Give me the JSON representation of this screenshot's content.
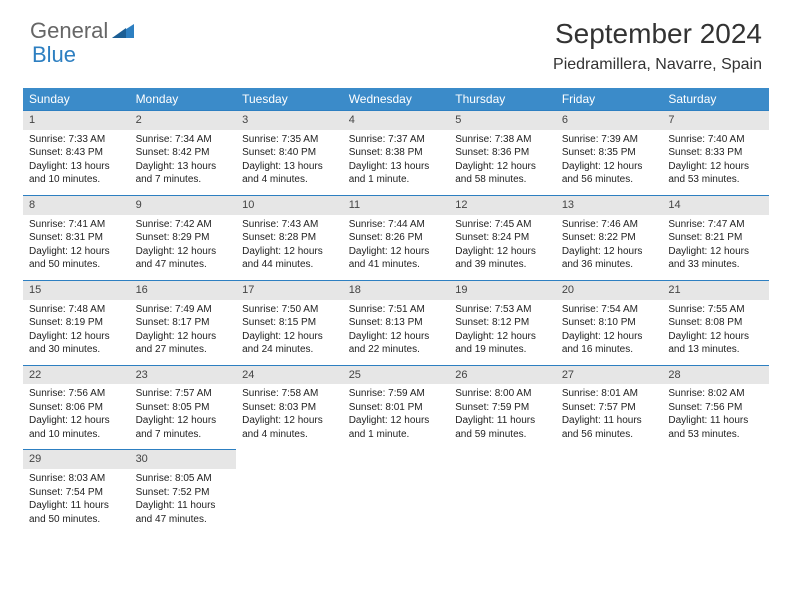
{
  "logo": {
    "text1": "General",
    "text2": "Blue"
  },
  "title": "September 2024",
  "location": "Piedramillera, Navarre, Spain",
  "colors": {
    "header_bg": "#3b8bc9",
    "header_text": "#ffffff",
    "daynum_bg": "#e6e6e6",
    "border_top": "#2d7fc1",
    "text": "#222222",
    "logo_gray": "#666666",
    "logo_blue": "#2d7fc1",
    "page_bg": "#ffffff"
  },
  "typography": {
    "title_fontsize": 28,
    "location_fontsize": 16,
    "weekday_fontsize": 12,
    "cell_fontsize": 10,
    "font_family": "Arial"
  },
  "weekday_labels": [
    "Sunday",
    "Monday",
    "Tuesday",
    "Wednesday",
    "Thursday",
    "Friday",
    "Saturday"
  ],
  "weeks": [
    [
      {
        "n": "1",
        "sunrise": "Sunrise: 7:33 AM",
        "sunset": "Sunset: 8:43 PM",
        "daylight": "Daylight: 13 hours and 10 minutes."
      },
      {
        "n": "2",
        "sunrise": "Sunrise: 7:34 AM",
        "sunset": "Sunset: 8:42 PM",
        "daylight": "Daylight: 13 hours and 7 minutes."
      },
      {
        "n": "3",
        "sunrise": "Sunrise: 7:35 AM",
        "sunset": "Sunset: 8:40 PM",
        "daylight": "Daylight: 13 hours and 4 minutes."
      },
      {
        "n": "4",
        "sunrise": "Sunrise: 7:37 AM",
        "sunset": "Sunset: 8:38 PM",
        "daylight": "Daylight: 13 hours and 1 minute."
      },
      {
        "n": "5",
        "sunrise": "Sunrise: 7:38 AM",
        "sunset": "Sunset: 8:36 PM",
        "daylight": "Daylight: 12 hours and 58 minutes."
      },
      {
        "n": "6",
        "sunrise": "Sunrise: 7:39 AM",
        "sunset": "Sunset: 8:35 PM",
        "daylight": "Daylight: 12 hours and 56 minutes."
      },
      {
        "n": "7",
        "sunrise": "Sunrise: 7:40 AM",
        "sunset": "Sunset: 8:33 PM",
        "daylight": "Daylight: 12 hours and 53 minutes."
      }
    ],
    [
      {
        "n": "8",
        "sunrise": "Sunrise: 7:41 AM",
        "sunset": "Sunset: 8:31 PM",
        "daylight": "Daylight: 12 hours and 50 minutes."
      },
      {
        "n": "9",
        "sunrise": "Sunrise: 7:42 AM",
        "sunset": "Sunset: 8:29 PM",
        "daylight": "Daylight: 12 hours and 47 minutes."
      },
      {
        "n": "10",
        "sunrise": "Sunrise: 7:43 AM",
        "sunset": "Sunset: 8:28 PM",
        "daylight": "Daylight: 12 hours and 44 minutes."
      },
      {
        "n": "11",
        "sunrise": "Sunrise: 7:44 AM",
        "sunset": "Sunset: 8:26 PM",
        "daylight": "Daylight: 12 hours and 41 minutes."
      },
      {
        "n": "12",
        "sunrise": "Sunrise: 7:45 AM",
        "sunset": "Sunset: 8:24 PM",
        "daylight": "Daylight: 12 hours and 39 minutes."
      },
      {
        "n": "13",
        "sunrise": "Sunrise: 7:46 AM",
        "sunset": "Sunset: 8:22 PM",
        "daylight": "Daylight: 12 hours and 36 minutes."
      },
      {
        "n": "14",
        "sunrise": "Sunrise: 7:47 AM",
        "sunset": "Sunset: 8:21 PM",
        "daylight": "Daylight: 12 hours and 33 minutes."
      }
    ],
    [
      {
        "n": "15",
        "sunrise": "Sunrise: 7:48 AM",
        "sunset": "Sunset: 8:19 PM",
        "daylight": "Daylight: 12 hours and 30 minutes."
      },
      {
        "n": "16",
        "sunrise": "Sunrise: 7:49 AM",
        "sunset": "Sunset: 8:17 PM",
        "daylight": "Daylight: 12 hours and 27 minutes."
      },
      {
        "n": "17",
        "sunrise": "Sunrise: 7:50 AM",
        "sunset": "Sunset: 8:15 PM",
        "daylight": "Daylight: 12 hours and 24 minutes."
      },
      {
        "n": "18",
        "sunrise": "Sunrise: 7:51 AM",
        "sunset": "Sunset: 8:13 PM",
        "daylight": "Daylight: 12 hours and 22 minutes."
      },
      {
        "n": "19",
        "sunrise": "Sunrise: 7:53 AM",
        "sunset": "Sunset: 8:12 PM",
        "daylight": "Daylight: 12 hours and 19 minutes."
      },
      {
        "n": "20",
        "sunrise": "Sunrise: 7:54 AM",
        "sunset": "Sunset: 8:10 PM",
        "daylight": "Daylight: 12 hours and 16 minutes."
      },
      {
        "n": "21",
        "sunrise": "Sunrise: 7:55 AM",
        "sunset": "Sunset: 8:08 PM",
        "daylight": "Daylight: 12 hours and 13 minutes."
      }
    ],
    [
      {
        "n": "22",
        "sunrise": "Sunrise: 7:56 AM",
        "sunset": "Sunset: 8:06 PM",
        "daylight": "Daylight: 12 hours and 10 minutes."
      },
      {
        "n": "23",
        "sunrise": "Sunrise: 7:57 AM",
        "sunset": "Sunset: 8:05 PM",
        "daylight": "Daylight: 12 hours and 7 minutes."
      },
      {
        "n": "24",
        "sunrise": "Sunrise: 7:58 AM",
        "sunset": "Sunset: 8:03 PM",
        "daylight": "Daylight: 12 hours and 4 minutes."
      },
      {
        "n": "25",
        "sunrise": "Sunrise: 7:59 AM",
        "sunset": "Sunset: 8:01 PM",
        "daylight": "Daylight: 12 hours and 1 minute."
      },
      {
        "n": "26",
        "sunrise": "Sunrise: 8:00 AM",
        "sunset": "Sunset: 7:59 PM",
        "daylight": "Daylight: 11 hours and 59 minutes."
      },
      {
        "n": "27",
        "sunrise": "Sunrise: 8:01 AM",
        "sunset": "Sunset: 7:57 PM",
        "daylight": "Daylight: 11 hours and 56 minutes."
      },
      {
        "n": "28",
        "sunrise": "Sunrise: 8:02 AM",
        "sunset": "Sunset: 7:56 PM",
        "daylight": "Daylight: 11 hours and 53 minutes."
      }
    ],
    [
      {
        "n": "29",
        "sunrise": "Sunrise: 8:03 AM",
        "sunset": "Sunset: 7:54 PM",
        "daylight": "Daylight: 11 hours and 50 minutes."
      },
      {
        "n": "30",
        "sunrise": "Sunrise: 8:05 AM",
        "sunset": "Sunset: 7:52 PM",
        "daylight": "Daylight: 11 hours and 47 minutes."
      },
      {
        "empty": true
      },
      {
        "empty": true
      },
      {
        "empty": true
      },
      {
        "empty": true
      },
      {
        "empty": true
      }
    ]
  ]
}
